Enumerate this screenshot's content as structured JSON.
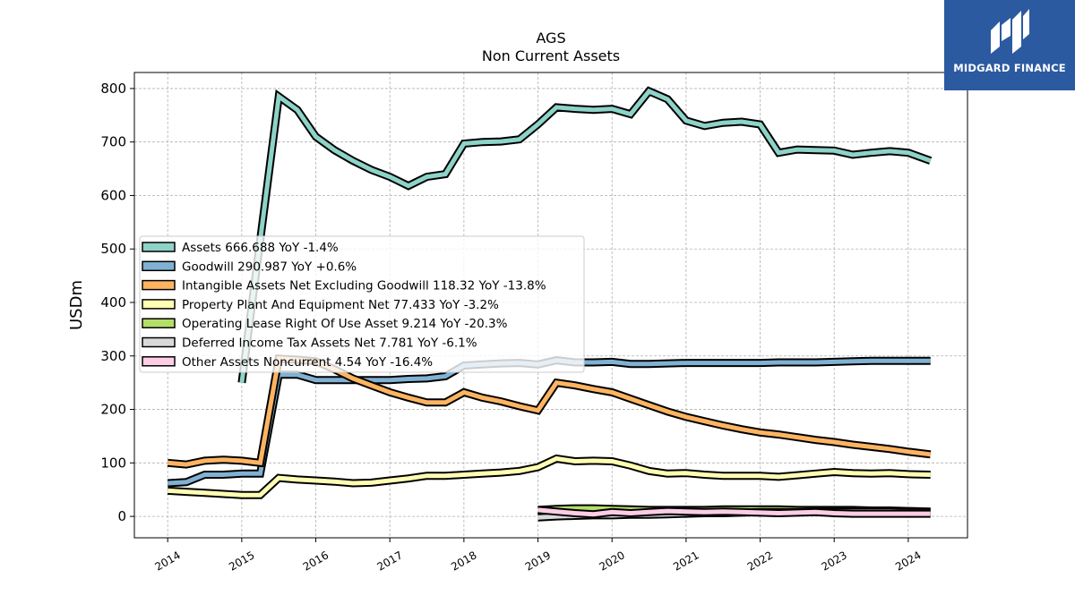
{
  "chart_data": {
    "type": "line",
    "title": "AGS",
    "subtitle": "Non Current  Assets",
    "ylabel": "USDm",
    "xlabel": "",
    "ylim": [
      -40,
      830
    ],
    "xlim": [
      2013.55,
      2024.8
    ],
    "yticks": [
      0,
      100,
      200,
      300,
      400,
      500,
      600,
      700,
      800
    ],
    "xticks": [
      2014,
      2015,
      2016,
      2017,
      2018,
      2019,
      2020,
      2021,
      2022,
      2023,
      2024
    ],
    "grid": true,
    "legend_position": "center-left",
    "series": [
      {
        "name": "Assets  666.688 YoY -1.4%",
        "color": "#8dd3c7",
        "points": [
          [
            2015.0,
            250
          ],
          [
            2015.5,
            785
          ],
          [
            2015.75,
            760
          ],
          [
            2016.0,
            710
          ],
          [
            2016.25,
            685
          ],
          [
            2016.5,
            665
          ],
          [
            2016.75,
            648
          ],
          [
            2017.0,
            635
          ],
          [
            2017.25,
            618
          ],
          [
            2017.5,
            635
          ],
          [
            2017.75,
            640
          ],
          [
            2018.0,
            697
          ],
          [
            2018.25,
            700
          ],
          [
            2018.5,
            701
          ],
          [
            2018.75,
            705
          ],
          [
            2019.0,
            733
          ],
          [
            2019.25,
            765
          ],
          [
            2019.5,
            762
          ],
          [
            2019.75,
            760
          ],
          [
            2020.0,
            762
          ],
          [
            2020.25,
            752
          ],
          [
            2020.5,
            795
          ],
          [
            2020.75,
            780
          ],
          [
            2021.0,
            740
          ],
          [
            2021.25,
            730
          ],
          [
            2021.5,
            736
          ],
          [
            2021.75,
            738
          ],
          [
            2022.0,
            733
          ],
          [
            2022.25,
            680
          ],
          [
            2022.5,
            686
          ],
          [
            2022.75,
            685
          ],
          [
            2023.0,
            684
          ],
          [
            2023.25,
            676
          ],
          [
            2023.5,
            680
          ],
          [
            2023.75,
            683
          ],
          [
            2024.0,
            680
          ],
          [
            2024.3,
            665
          ]
        ]
      },
      {
        "name": "Goodwill  290.987 YoY +0.6%",
        "color": "#80b1d3",
        "points": [
          [
            2014.0,
            62
          ],
          [
            2014.25,
            64
          ],
          [
            2014.5,
            78
          ],
          [
            2014.75,
            78
          ],
          [
            2015.0,
            80
          ],
          [
            2015.25,
            80
          ],
          [
            2015.5,
            265
          ],
          [
            2015.75,
            265
          ],
          [
            2016.0,
            255
          ],
          [
            2016.25,
            255
          ],
          [
            2016.5,
            255
          ],
          [
            2016.75,
            255
          ],
          [
            2017.0,
            255
          ],
          [
            2017.25,
            257
          ],
          [
            2017.5,
            258
          ],
          [
            2017.75,
            262
          ],
          [
            2018.0,
            282
          ],
          [
            2018.25,
            284
          ],
          [
            2018.5,
            286
          ],
          [
            2018.75,
            287
          ],
          [
            2019.0,
            284
          ],
          [
            2019.25,
            292
          ],
          [
            2019.5,
            288
          ],
          [
            2019.75,
            288
          ],
          [
            2020.0,
            289
          ],
          [
            2020.25,
            285
          ],
          [
            2020.5,
            285
          ],
          [
            2020.75,
            286
          ],
          [
            2021.0,
            287
          ],
          [
            2021.25,
            287
          ],
          [
            2021.5,
            287
          ],
          [
            2021.75,
            287
          ],
          [
            2022.0,
            287
          ],
          [
            2022.25,
            288
          ],
          [
            2022.5,
            288
          ],
          [
            2022.75,
            288
          ],
          [
            2023.0,
            289
          ],
          [
            2023.25,
            290
          ],
          [
            2023.5,
            291
          ],
          [
            2023.75,
            291
          ],
          [
            2024.0,
            291
          ],
          [
            2024.3,
            291
          ]
        ]
      },
      {
        "name": "Intangible Assets Net Excluding Goodwill  118.32 YoY -13.8%",
        "color": "#fdb462",
        "points": [
          [
            2014.0,
            100
          ],
          [
            2014.25,
            97
          ],
          [
            2014.5,
            104
          ],
          [
            2014.75,
            106
          ],
          [
            2015.0,
            104
          ],
          [
            2015.25,
            100
          ],
          [
            2015.5,
            295
          ],
          [
            2015.75,
            293
          ],
          [
            2016.0,
            290
          ],
          [
            2016.25,
            275
          ],
          [
            2016.5,
            258
          ],
          [
            2016.75,
            245
          ],
          [
            2017.0,
            232
          ],
          [
            2017.25,
            222
          ],
          [
            2017.5,
            213
          ],
          [
            2017.75,
            213
          ],
          [
            2018.0,
            232
          ],
          [
            2018.25,
            222
          ],
          [
            2018.5,
            215
          ],
          [
            2018.75,
            206
          ],
          [
            2019.0,
            198
          ],
          [
            2019.25,
            250
          ],
          [
            2019.5,
            245
          ],
          [
            2019.75,
            238
          ],
          [
            2020.0,
            232
          ],
          [
            2020.25,
            220
          ],
          [
            2020.5,
            208
          ],
          [
            2020.75,
            196
          ],
          [
            2021.0,
            186
          ],
          [
            2021.25,
            178
          ],
          [
            2021.5,
            170
          ],
          [
            2021.75,
            163
          ],
          [
            2022.0,
            157
          ],
          [
            2022.25,
            153
          ],
          [
            2022.5,
            148
          ],
          [
            2022.75,
            143
          ],
          [
            2023.0,
            139
          ],
          [
            2023.25,
            134
          ],
          [
            2023.5,
            130
          ],
          [
            2023.75,
            126
          ],
          [
            2024.0,
            121
          ],
          [
            2024.3,
            116
          ]
        ]
      },
      {
        "name": "Property Plant And Equipment Net  77.433 YoY -3.2%",
        "color": "#ffffb3",
        "points": [
          [
            2014.0,
            48
          ],
          [
            2014.25,
            46
          ],
          [
            2014.5,
            44
          ],
          [
            2014.75,
            42
          ],
          [
            2015.0,
            40
          ],
          [
            2015.25,
            40
          ],
          [
            2015.5,
            72
          ],
          [
            2015.75,
            69
          ],
          [
            2016.0,
            67
          ],
          [
            2016.25,
            65
          ],
          [
            2016.5,
            62
          ],
          [
            2016.75,
            63
          ],
          [
            2017.0,
            67
          ],
          [
            2017.25,
            71
          ],
          [
            2017.5,
            76
          ],
          [
            2017.75,
            76
          ],
          [
            2018.0,
            78
          ],
          [
            2018.25,
            80
          ],
          [
            2018.5,
            82
          ],
          [
            2018.75,
            85
          ],
          [
            2019.0,
            92
          ],
          [
            2019.25,
            108
          ],
          [
            2019.5,
            103
          ],
          [
            2019.75,
            104
          ],
          [
            2020.0,
            103
          ],
          [
            2020.25,
            95
          ],
          [
            2020.5,
            85
          ],
          [
            2020.75,
            80
          ],
          [
            2021.0,
            81
          ],
          [
            2021.25,
            78
          ],
          [
            2021.5,
            76
          ],
          [
            2021.75,
            76
          ],
          [
            2022.0,
            76
          ],
          [
            2022.25,
            74
          ],
          [
            2022.5,
            77
          ],
          [
            2022.75,
            80
          ],
          [
            2023.0,
            83
          ],
          [
            2023.25,
            81
          ],
          [
            2023.5,
            80
          ],
          [
            2023.75,
            81
          ],
          [
            2024.0,
            79
          ],
          [
            2024.3,
            78
          ]
        ]
      },
      {
        "name": "Operating Lease Right Of Use Asset  9.214 YoY -20.3%",
        "color": "#b3de69",
        "points": [
          [
            2019.0,
            12
          ],
          [
            2019.25,
            14
          ],
          [
            2019.5,
            15
          ],
          [
            2019.75,
            15
          ],
          [
            2020.0,
            14
          ],
          [
            2020.25,
            13
          ],
          [
            2020.5,
            12
          ],
          [
            2020.75,
            12
          ],
          [
            2021.0,
            12
          ],
          [
            2021.25,
            12
          ],
          [
            2021.5,
            13
          ],
          [
            2021.75,
            13
          ],
          [
            2022.0,
            13
          ],
          [
            2022.25,
            13
          ],
          [
            2022.5,
            12
          ],
          [
            2022.75,
            12
          ],
          [
            2023.0,
            12
          ],
          [
            2023.25,
            12
          ],
          [
            2023.5,
            11
          ],
          [
            2023.75,
            11
          ],
          [
            2024.0,
            10
          ],
          [
            2024.3,
            9
          ]
        ]
      },
      {
        "name": "Deferred Income Tax Assets Net  7.781 YoY -6.1%",
        "color": "#d9d9d9",
        "points": [
          [
            2019.0,
            -2
          ],
          [
            2019.25,
            0
          ],
          [
            2019.5,
            1
          ],
          [
            2019.75,
            2
          ],
          [
            2020.0,
            2
          ],
          [
            2020.25,
            3
          ],
          [
            2020.5,
            3
          ],
          [
            2020.75,
            4
          ],
          [
            2021.0,
            5
          ],
          [
            2021.25,
            6
          ],
          [
            2021.5,
            6
          ],
          [
            2021.75,
            7
          ],
          [
            2022.0,
            8
          ],
          [
            2022.25,
            8
          ],
          [
            2022.5,
            8
          ],
          [
            2022.75,
            9
          ],
          [
            2023.0,
            9
          ],
          [
            2023.25,
            9
          ],
          [
            2023.5,
            9
          ],
          [
            2023.75,
            9
          ],
          [
            2024.0,
            8
          ],
          [
            2024.3,
            8
          ]
        ]
      },
      {
        "name": "Other Assets Noncurrent  4.54 YoY -16.4%",
        "color": "#fccde5",
        "points": [
          [
            2019.0,
            12
          ],
          [
            2019.25,
            9
          ],
          [
            2019.5,
            6
          ],
          [
            2019.75,
            4
          ],
          [
            2020.0,
            8
          ],
          [
            2020.25,
            6
          ],
          [
            2020.5,
            8
          ],
          [
            2020.75,
            10
          ],
          [
            2021.0,
            9
          ],
          [
            2021.25,
            8
          ],
          [
            2021.5,
            9
          ],
          [
            2021.75,
            8
          ],
          [
            2022.0,
            7
          ],
          [
            2022.25,
            6
          ],
          [
            2022.5,
            7
          ],
          [
            2022.75,
            8
          ],
          [
            2023.0,
            6
          ],
          [
            2023.25,
            5
          ],
          [
            2023.5,
            5
          ],
          [
            2023.75,
            5
          ],
          [
            2024.0,
            5
          ],
          [
            2024.3,
            5
          ]
        ]
      }
    ]
  },
  "logo": {
    "text": "MIDGARD FINANCE",
    "background": "#2c5aa0"
  }
}
